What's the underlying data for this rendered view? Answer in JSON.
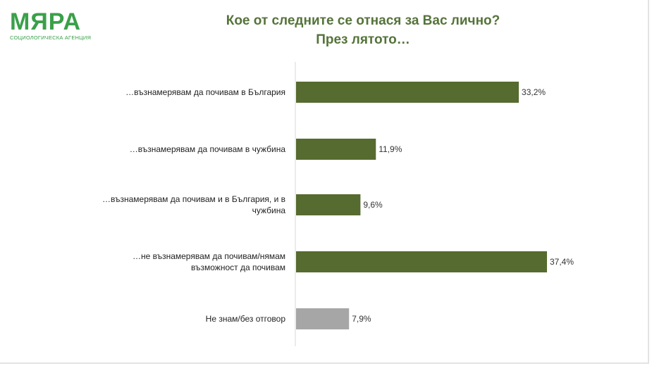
{
  "logo": {
    "name": "МЯРА",
    "subtitle": "СОЦИОЛОГИЧЕСКА АГЕНЦИЯ"
  },
  "colors": {
    "brand": "#3aa04a",
    "title": "#55733a",
    "bar_primary": "#566b2f",
    "bar_neutral": "#a6a6a6"
  },
  "chart_data": {
    "type": "bar",
    "orientation": "horizontal",
    "title": "Кое от следните се отнася за Вас лично?",
    "subtitle": "През лятото…",
    "categories": [
      "…възнамерявам да почивам в България",
      "…възнамерявам да почивам в чужбина",
      "…възнамерявам да почивам и в България, и в чужбина",
      "…не възнамерявам да почивам/нямам възможност да почивам",
      "Не знам/без отговор"
    ],
    "category_lines": [
      [
        "…възнамерявам да почивам в България"
      ],
      [
        "…възнамерявам да почивам в чужбина"
      ],
      [
        "…възнамерявам да почивам и в България, и в",
        "чужбина"
      ],
      [
        "…не възнамерявам да почивам/нямам",
        "възможност да почивам"
      ],
      [
        "Не знам/без отговор"
      ]
    ],
    "values": [
      33.2,
      11.9,
      9.6,
      37.4,
      7.9
    ],
    "value_labels": [
      "33,2%",
      "11,9%",
      "9,6%",
      "37,4%",
      "7,9%"
    ],
    "bar_colors": [
      "#566b2f",
      "#566b2f",
      "#566b2f",
      "#566b2f",
      "#a6a6a6"
    ],
    "unit": "%",
    "grid": false,
    "legend": "none"
  }
}
